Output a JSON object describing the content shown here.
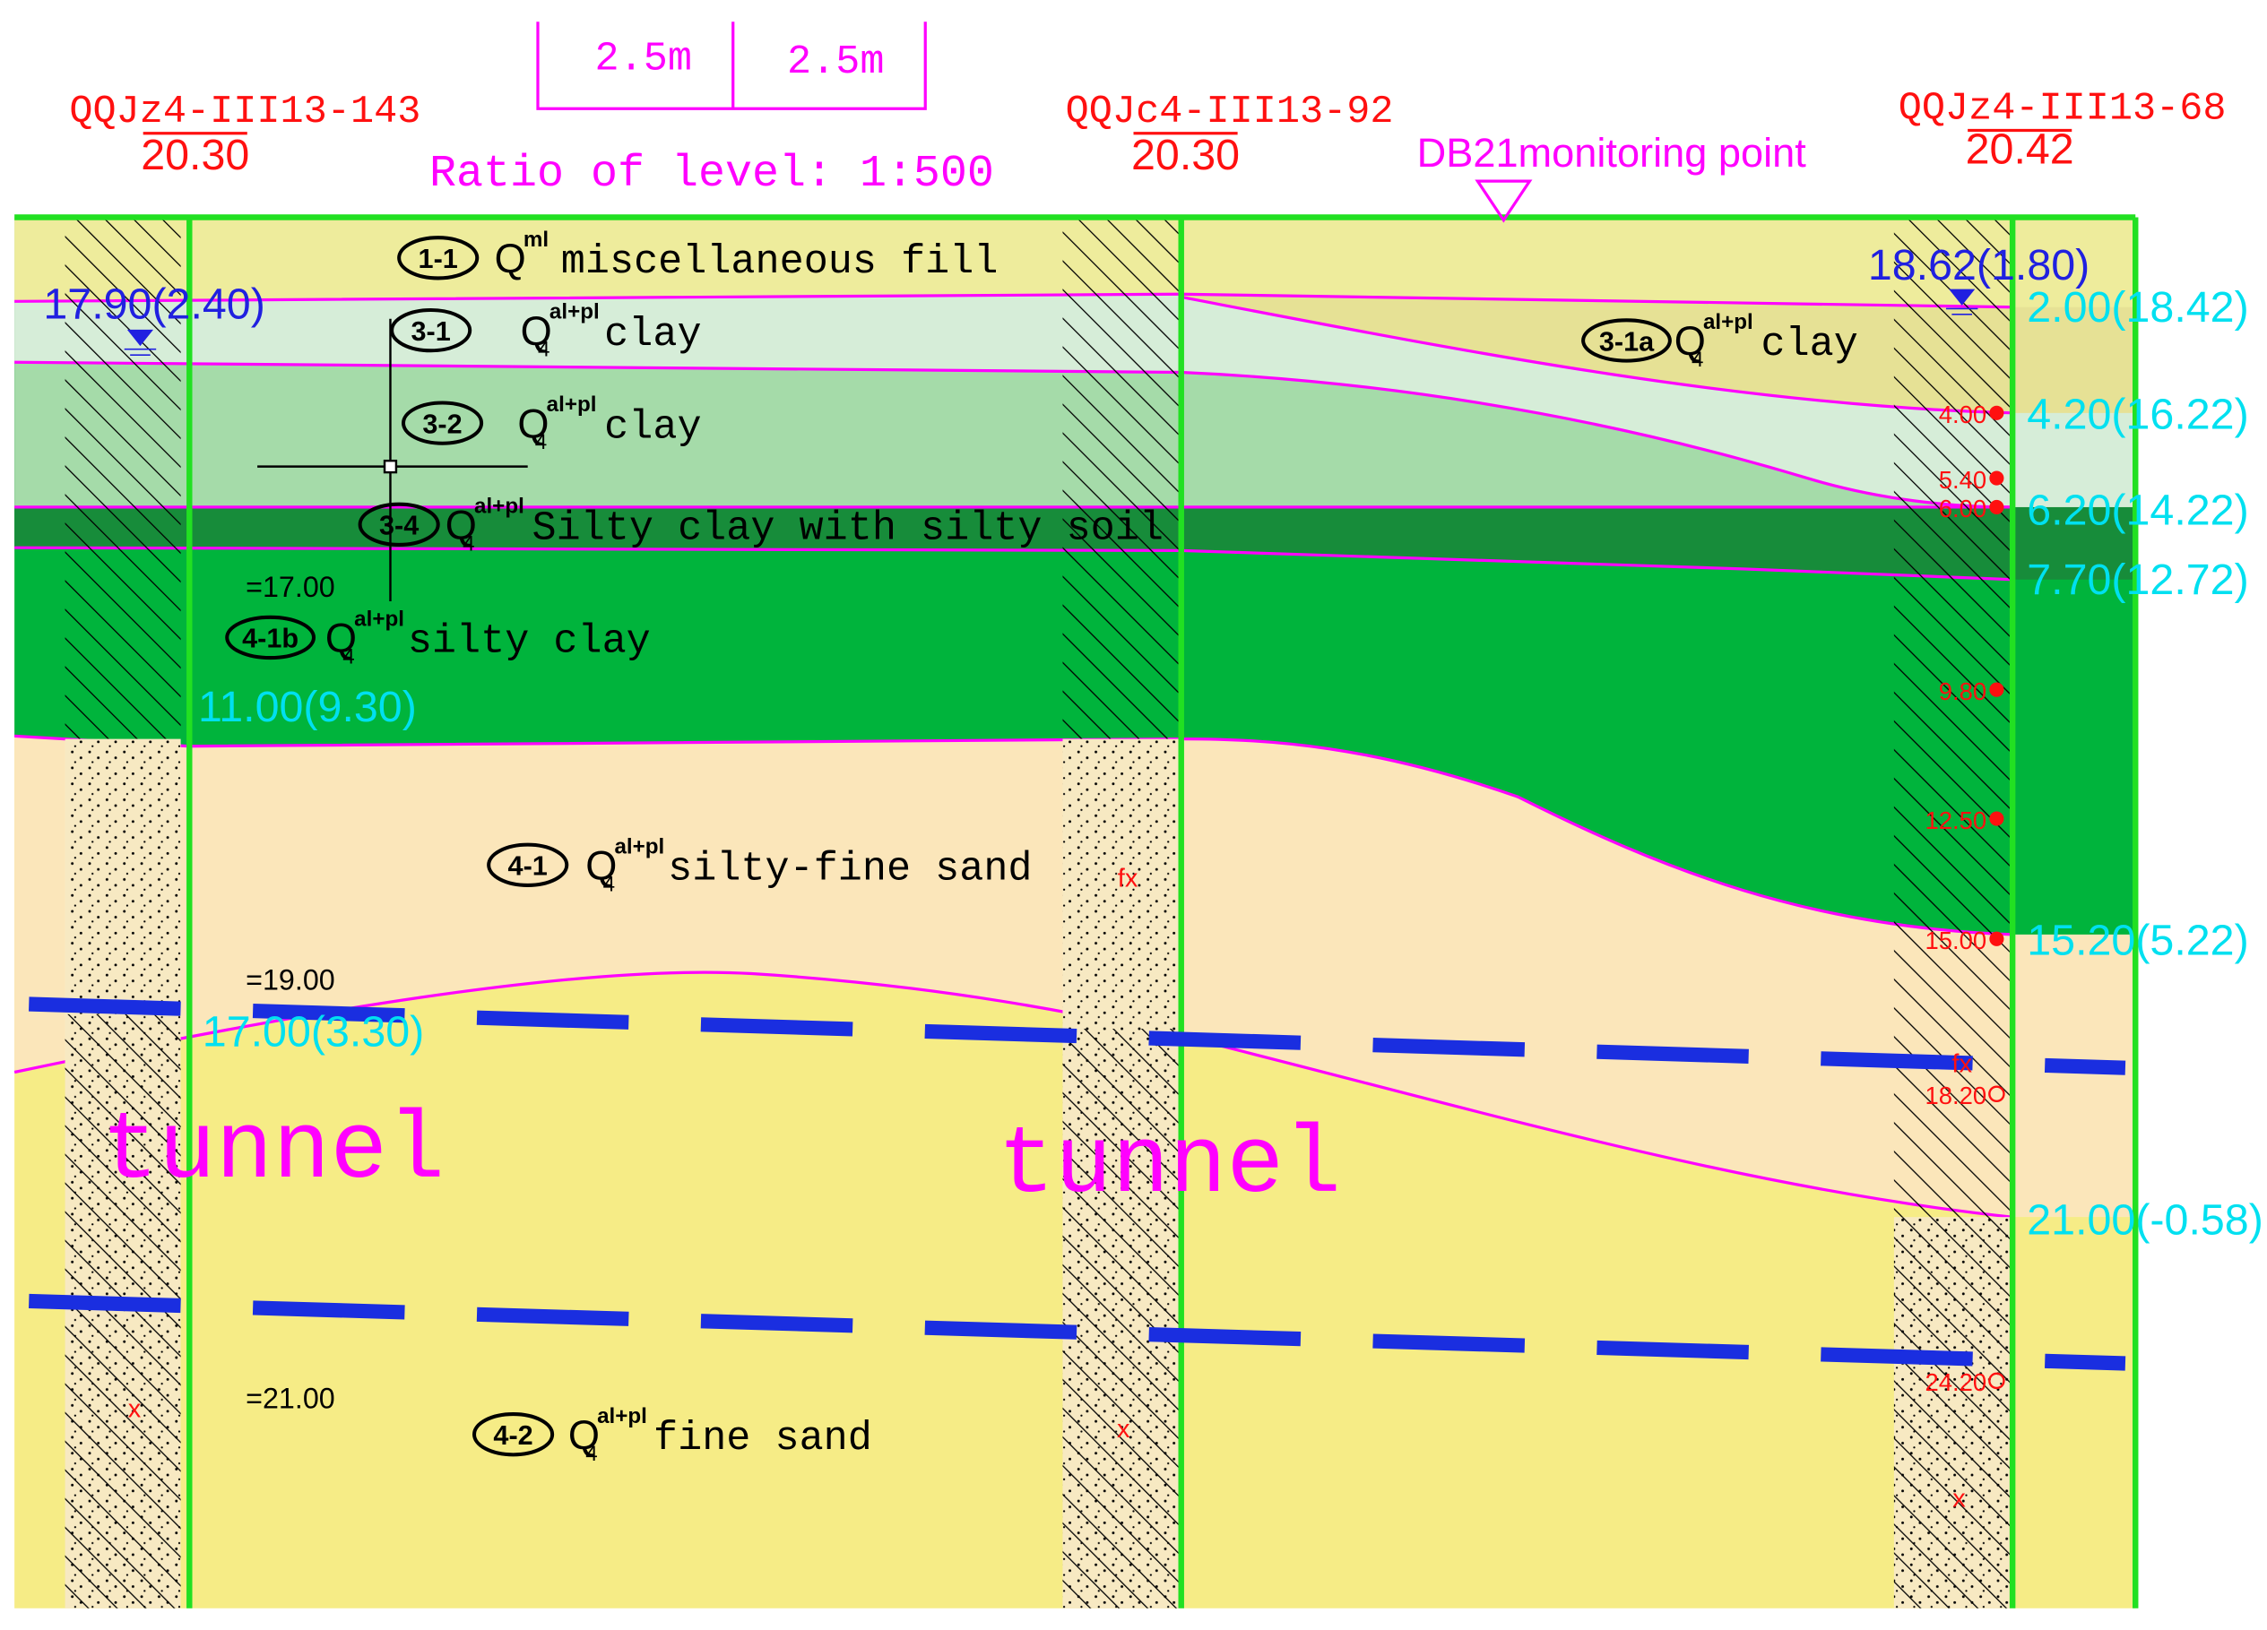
{
  "scale_bar": {
    "left": "2.5m",
    "right": "2.5m",
    "ratio": "Ratio of level: 1:500"
  },
  "boreholes": [
    {
      "id": "QQJz4-III13-143",
      "elevation": "20.30",
      "water_level": "17.90(2.40)"
    },
    {
      "id": "QQJc4-III13-92",
      "elevation": "20.30"
    },
    {
      "id": "QQJz4-III13-68",
      "elevation": "20.42",
      "water_level": "18.62(1.80)"
    }
  ],
  "monitoring_point": "DB21monitoring point",
  "layers": [
    {
      "code": "1-1",
      "symbol": "Q",
      "superscript": "ml",
      "name": "miscellaneous fill"
    },
    {
      "code": "3-1",
      "symbol": "Q",
      "subscript": "4",
      "superscript": "al+pl",
      "name": "clay"
    },
    {
      "code": "3-2",
      "symbol": "Q",
      "subscript": "4",
      "superscript": "al+pl",
      "name": "clay"
    },
    {
      "code": "3-4",
      "symbol": "Q",
      "subscript": "4",
      "superscript": "al+pl",
      "name": "Silty clay with silty soil"
    },
    {
      "code": "4-1b",
      "symbol": "Q",
      "subscript": "4",
      "superscript": "al+pl",
      "name": "silty clay"
    },
    {
      "code": "4-1",
      "symbol": "Q",
      "subscript": "4",
      "superscript": "al+pl",
      "name": "silty-fine sand"
    },
    {
      "code": "4-2",
      "symbol": "Q",
      "subscript": "4",
      "superscript": "al+pl",
      "name": "fine sand"
    },
    {
      "code": "3-1a",
      "symbol": "Q",
      "subscript": "4",
      "superscript": "al+pl",
      "name": "clay"
    }
  ],
  "left_annotations": [
    "=17.00",
    "11.00(9.30)",
    "=19.00",
    "17.00(3.30)",
    "=21.00"
  ],
  "right_depths": [
    "2.00(18.42)",
    "4.20(16.22)",
    "6.20(14.22)",
    "7.70(12.72)",
    "15.20(5.22)",
    "21.00(-0.58)"
  ],
  "sample_depths": [
    "4.00",
    "5.40",
    "6.00",
    "9.80",
    "12.50",
    "15.00",
    "18.20",
    "24.20"
  ],
  "markers": [
    "fx",
    "fx",
    "x",
    "x",
    "x"
  ],
  "tunnel_labels": [
    "tunnel",
    "tunnel"
  ]
}
